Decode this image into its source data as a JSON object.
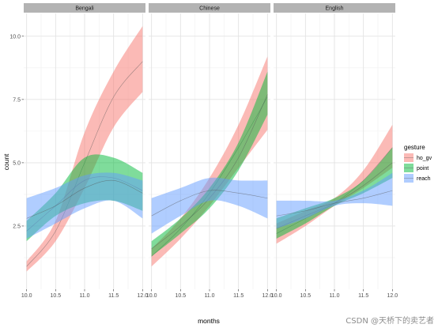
{
  "chart_data": {
    "type": "area",
    "description_style": "faceted smoothed count by months with confidence ribbons",
    "xlabel": "months",
    "ylabel": "count",
    "xlim": [
      9.95,
      12.05
    ],
    "ylim": [
      0.0,
      10.9
    ],
    "x_ticks": [
      "10.0",
      "10.5",
      "11.0",
      "11.5",
      "12.0"
    ],
    "x_tick_values": [
      10.0,
      10.5,
      11.0,
      11.5,
      12.0
    ],
    "y_ticks": [
      "2.5",
      "5.0",
      "7.5",
      "10.0"
    ],
    "y_tick_values": [
      2.5,
      5.0,
      7.5,
      10.0
    ],
    "grid": true,
    "legend": {
      "title": "gesture",
      "position": "right",
      "entries": [
        {
          "name": "ho_gv",
          "color": "#F8766D"
        },
        {
          "name": "point",
          "color": "#00BA38"
        },
        {
          "name": "reach",
          "color": "#619CFF"
        }
      ]
    },
    "facets": [
      {
        "label": "Bengali",
        "series": [
          {
            "name": "ho_gv",
            "x": [
              10.0,
              10.5,
              11.0,
              11.5,
              12.0
            ],
            "fit": [
              0.9,
              2.3,
              5.0,
              7.6,
              9.0
            ],
            "lower": [
              0.7,
              1.9,
              4.0,
              6.4,
              7.8
            ],
            "upper": [
              1.1,
              2.7,
              6.2,
              8.6,
              10.4
            ]
          },
          {
            "name": "point",
            "x": [
              10.0,
              10.5,
              11.0,
              11.5,
              12.0
            ],
            "fit": [
              2.3,
              3.3,
              4.3,
              4.4,
              3.9
            ],
            "lower": [
              1.9,
              2.9,
              3.4,
              3.5,
              3.1
            ],
            "upper": [
              2.7,
              3.8,
              5.2,
              5.2,
              4.6
            ]
          },
          {
            "name": "reach",
            "x": [
              10.0,
              10.5,
              11.0,
              11.5,
              12.0
            ],
            "fit": [
              2.8,
              3.3,
              4.0,
              4.3,
              3.8
            ],
            "lower": [
              2.0,
              2.6,
              3.2,
              3.5,
              2.8
            ],
            "upper": [
              3.6,
              4.0,
              4.5,
              4.6,
              4.3
            ]
          }
        ]
      },
      {
        "label": "Chinese",
        "series": [
          {
            "name": "ho_gv",
            "x": [
              10.0,
              10.5,
              11.0,
              11.5,
              12.0
            ],
            "fit": [
              1.3,
              2.4,
              3.8,
              5.6,
              7.6
            ],
            "lower": [
              0.9,
              2.0,
              3.3,
              4.8,
              6.3
            ],
            "upper": [
              1.6,
              2.8,
              4.4,
              6.5,
              9.2
            ]
          },
          {
            "name": "point",
            "x": [
              10.0,
              10.5,
              11.0,
              11.5,
              12.0
            ],
            "fit": [
              1.6,
              2.5,
              3.6,
              5.2,
              7.7
            ],
            "lower": [
              1.3,
              2.2,
              3.2,
              4.7,
              6.9
            ],
            "upper": [
              1.9,
              2.8,
              4.0,
              5.8,
              8.6
            ]
          },
          {
            "name": "reach",
            "x": [
              10.0,
              10.5,
              11.0,
              11.5,
              12.0
            ],
            "fit": [
              2.9,
              3.5,
              3.9,
              3.8,
              3.6
            ],
            "lower": [
              2.2,
              2.9,
              3.5,
              3.3,
              2.8
            ],
            "upper": [
              3.6,
              4.0,
              4.4,
              4.3,
              4.3
            ]
          }
        ]
      },
      {
        "label": "English",
        "series": [
          {
            "name": "ho_gv",
            "x": [
              10.0,
              10.5,
              11.0,
              11.5,
              12.0
            ],
            "fit": [
              2.2,
              2.8,
              3.4,
              4.3,
              5.6
            ],
            "lower": [
              1.8,
              2.5,
              3.3,
              4.0,
              4.8
            ],
            "upper": [
              2.6,
              3.1,
              3.6,
              4.7,
              6.5
            ]
          },
          {
            "name": "point",
            "x": [
              10.0,
              10.5,
              11.0,
              11.5,
              12.0
            ],
            "fit": [
              2.4,
              2.9,
              3.4,
              4.1,
              5.0
            ],
            "lower": [
              2.0,
              2.6,
              3.3,
              3.8,
              4.4
            ],
            "upper": [
              2.8,
              3.2,
              3.6,
              4.3,
              5.6
            ]
          },
          {
            "name": "reach",
            "x": [
              10.0,
              10.5,
              11.0,
              11.5,
              12.0
            ],
            "fit": [
              2.9,
              3.1,
              3.4,
              3.6,
              3.9
            ],
            "lower": [
              2.4,
              2.8,
              3.3,
              3.4,
              3.3
            ],
            "upper": [
              3.5,
              3.5,
              3.5,
              3.9,
              4.6
            ]
          }
        ]
      }
    ]
  },
  "watermark": "CSDN @天桥下的卖艺者"
}
